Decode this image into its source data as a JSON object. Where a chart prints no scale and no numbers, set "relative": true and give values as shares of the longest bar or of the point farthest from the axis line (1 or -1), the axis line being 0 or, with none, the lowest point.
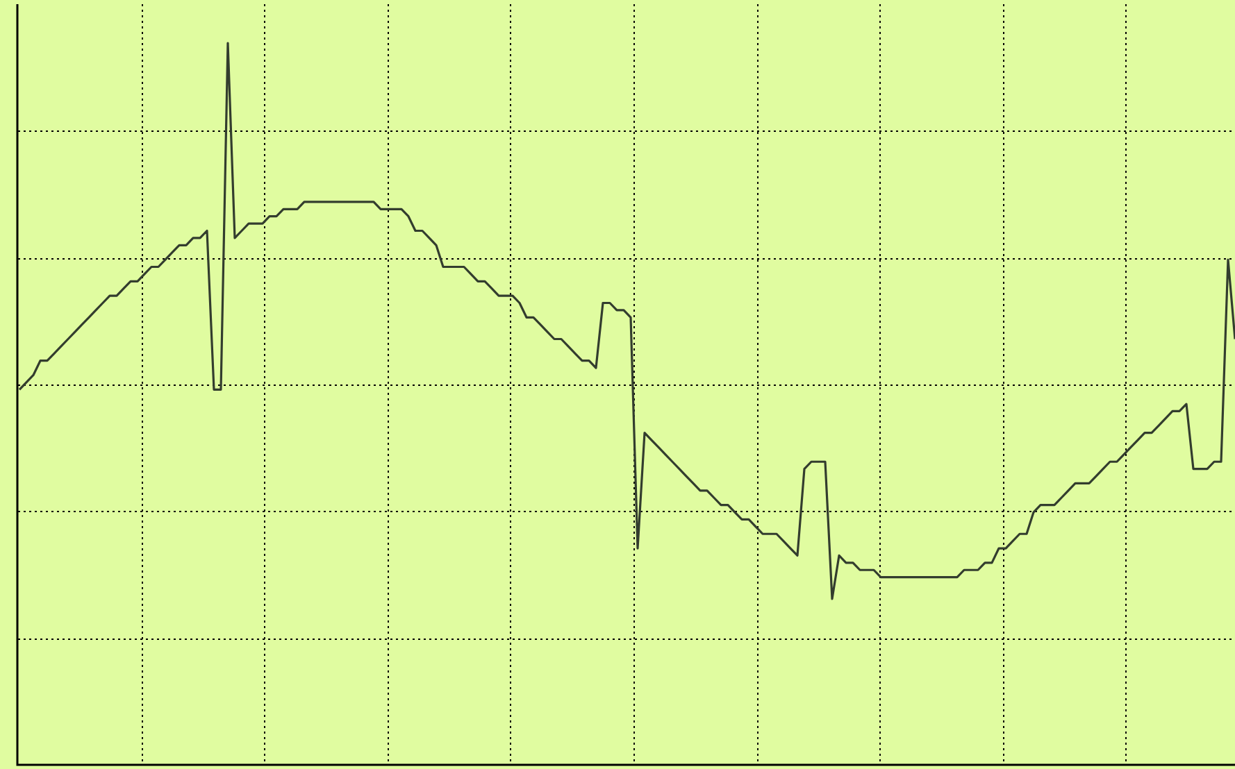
{
  "chart_data": {
    "type": "line",
    "relative": true,
    "grid": true,
    "marker": "none",
    "color": "#333d2e",
    "categories": [
      null,
      null,
      null,
      null,
      null,
      null,
      null,
      null,
      null,
      null,
      null,
      null,
      null,
      null,
      null,
      null,
      null,
      null,
      null,
      null,
      null,
      null,
      null,
      null,
      null,
      null,
      null,
      null,
      null,
      null,
      null,
      null,
      null,
      null,
      null,
      null,
      null,
      null,
      null,
      null,
      null,
      null,
      null,
      null,
      null,
      null,
      null,
      null,
      null,
      null,
      null,
      null,
      null,
      null,
      null,
      null,
      null,
      null,
      null,
      null,
      null,
      null,
      null,
      null,
      null,
      null,
      null,
      null,
      null,
      null,
      null,
      null,
      null,
      null,
      null,
      null,
      null,
      null,
      null,
      null,
      null,
      null,
      null,
      null,
      null,
      null,
      null,
      null,
      null,
      null,
      null,
      null,
      null,
      null,
      null,
      null,
      null,
      null,
      null,
      null,
      null,
      null,
      null,
      null,
      null,
      null,
      null,
      null,
      null,
      null,
      null,
      null,
      null,
      null,
      null,
      null,
      null,
      null,
      null,
      null,
      null,
      null,
      null,
      null,
      null,
      null,
      null,
      null,
      null,
      null,
      null,
      null,
      null,
      null,
      null,
      null,
      null,
      null,
      null,
      null,
      null,
      null,
      null,
      null,
      null,
      null,
      null,
      null,
      null,
      null,
      null,
      null,
      null,
      null,
      null,
      null,
      null,
      null,
      null,
      null,
      null,
      null,
      null,
      null,
      null,
      null,
      null,
      null,
      null,
      null,
      null,
      null,
      null,
      null,
      null,
      null
    ],
    "values": [
      0.52,
      0.53,
      0.54,
      0.56,
      0.56,
      0.57,
      0.58,
      0.59,
      0.6,
      0.61,
      0.62,
      0.63,
      0.64,
      0.65,
      0.65,
      0.66,
      0.67,
      0.67,
      0.68,
      0.69,
      0.69,
      0.7,
      0.71,
      0.72,
      0.72,
      0.73,
      0.73,
      0.74,
      0.52,
      0.52,
      1,
      0.73,
      0.74,
      0.75,
      0.75,
      0.75,
      0.76,
      0.76,
      0.77,
      0.77,
      0.77,
      0.78,
      0.78,
      0.78,
      0.78,
      0.78,
      0.78,
      0.78,
      0.78,
      0.78,
      0.78,
      0.78,
      0.77,
      0.77,
      0.77,
      0.77,
      0.76,
      0.74,
      0.74,
      0.73,
      0.72,
      0.69,
      0.69,
      0.69,
      0.69,
      0.68,
      0.67,
      0.67,
      0.66,
      0.65,
      0.65,
      0.65,
      0.64,
      0.62,
      0.62,
      0.61,
      0.6,
      0.59,
      0.59,
      0.58,
      0.57,
      0.56,
      0.56,
      0.55,
      0.64,
      0.64,
      0.63,
      0.63,
      0.62,
      0.3,
      0.46,
      0.45,
      0.44,
      0.43,
      0.42,
      0.41,
      0.4,
      0.39,
      0.38,
      0.38,
      0.37,
      0.36,
      0.36,
      0.35,
      0.34,
      0.34,
      0.33,
      0.32,
      0.32,
      0.32,
      0.31,
      0.3,
      0.29,
      0.41,
      0.42,
      0.42,
      0.42,
      0.23,
      0.29,
      0.28,
      0.28,
      0.27,
      0.27,
      0.27,
      0.26,
      0.26,
      0.26,
      0.26,
      0.26,
      0.26,
      0.26,
      0.26,
      0.26,
      0.26,
      0.26,
      0.26,
      0.27,
      0.27,
      0.27,
      0.28,
      0.28,
      0.3,
      0.3,
      0.31,
      0.32,
      0.32,
      0.35,
      0.36,
      0.36,
      0.36,
      0.37,
      0.38,
      0.39,
      0.39,
      0.39,
      0.4,
      0.41,
      0.42,
      0.42,
      0.43,
      0.44,
      0.45,
      0.46,
      0.46,
      0.47,
      0.48,
      0.49,
      0.49,
      0.5,
      0.41,
      0.41,
      0.41,
      0.42,
      0.42,
      0.7,
      0.59
    ]
  }
}
